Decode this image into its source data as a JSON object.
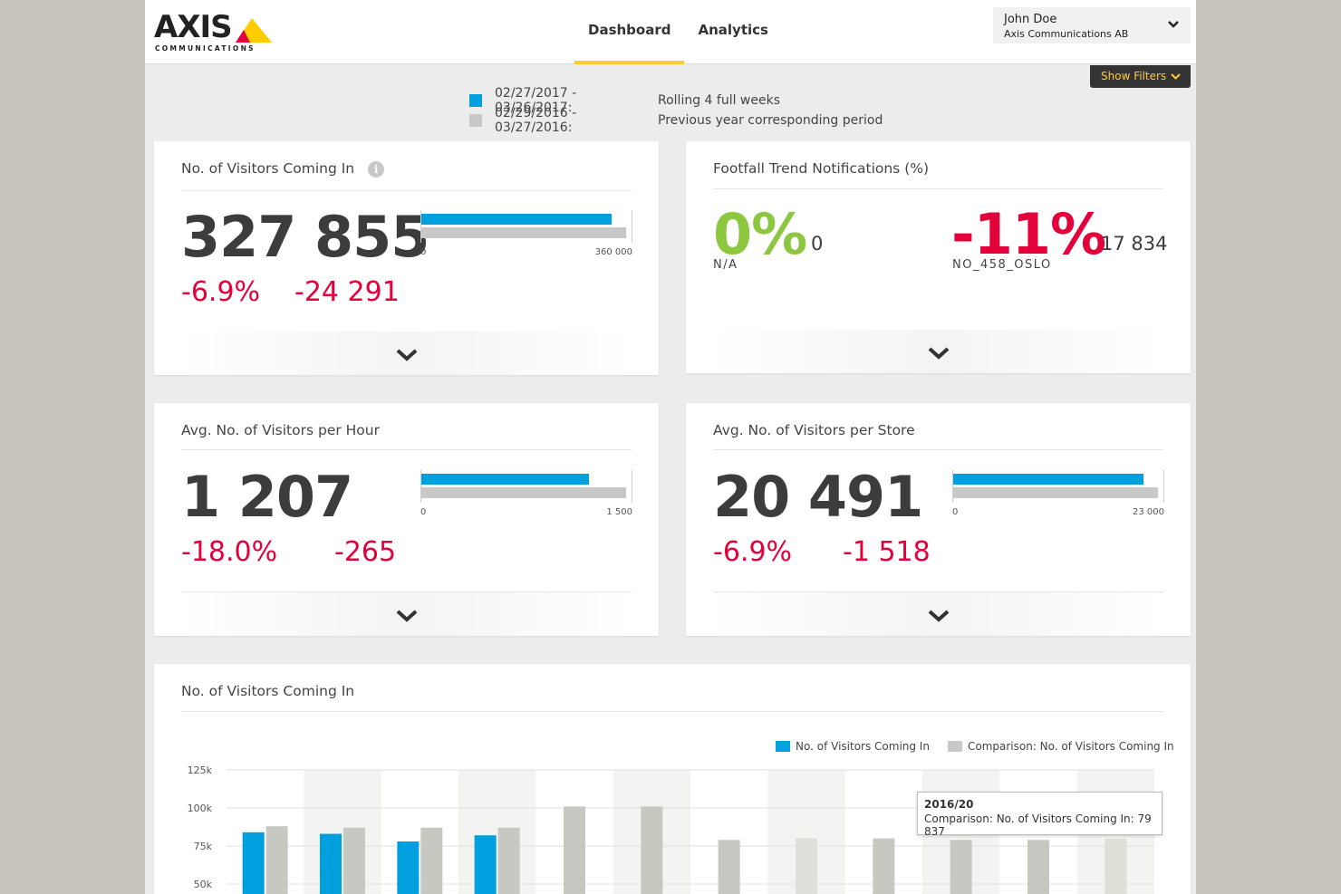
{
  "brand": {
    "name": "AXIS",
    "sub": "COMMUNICATIONS"
  },
  "nav": {
    "tabs": [
      {
        "label": "Dashboard",
        "active": true
      },
      {
        "label": "Analytics",
        "active": false
      }
    ]
  },
  "user": {
    "name": "John Doe",
    "org": "Axis Communications AB"
  },
  "filters": {
    "label": "Show Filters"
  },
  "periods": [
    {
      "range": "02/27/2017 - 03/26/2017:",
      "desc": "Rolling 4 full weeks",
      "color": "#009fdd"
    },
    {
      "range": "02/29/2016 - 03/27/2016:",
      "desc": "Previous year corresponding period",
      "color": "#c8c8c8"
    }
  ],
  "colors": {
    "accent": "#ffcc33",
    "current": "#009fdd",
    "previous": "#c8c8c8",
    "negative": "#e4003b",
    "positive": "#8dc63f"
  },
  "cards": {
    "visitors_in": {
      "title": "No. of Visitors Coming In",
      "value": "327 855",
      "delta_pct": "-6.9%",
      "delta_abs": "-24 291",
      "bar_min": "0",
      "bar_max": "360 000",
      "current_fraction": 0.93,
      "previous_fraction": 1.0
    },
    "trend": {
      "title": "Footfall Trend Notifications (%)",
      "left": {
        "pct": "0%",
        "count": "0",
        "label": "N/A"
      },
      "right": {
        "pct": "-11%",
        "count": "17 834",
        "label": "NO_458_OSLO"
      }
    },
    "per_hour": {
      "title": "Avg. No. of Visitors per Hour",
      "value": "1 207",
      "delta_pct": "-18.0%",
      "delta_abs": "-265",
      "bar_min": "0",
      "bar_max": "1 500",
      "current_fraction": 0.82,
      "previous_fraction": 1.0
    },
    "per_store": {
      "title": "Avg. No. of Visitors per Store",
      "value": "20 491",
      "delta_pct": "-6.9%",
      "delta_abs": "-1 518",
      "bar_min": "0",
      "bar_max": "23 000",
      "current_fraction": 0.93,
      "previous_fraction": 1.0
    }
  },
  "chart_section": {
    "title": "No. of Visitors Coming In"
  },
  "tooltip": {
    "title": "2016/20",
    "text": "Comparison: No. of Visitors Coming In: 79 837"
  },
  "chart_data": {
    "type": "bar",
    "series": [
      {
        "name": "No. of Visitors Coming In",
        "values": [
          84000,
          83000,
          78000,
          82000,
          null,
          null,
          null,
          null,
          null,
          null,
          null,
          null
        ],
        "color": "#009fdd"
      },
      {
        "name": "Comparison: No. of Visitors Coming In",
        "values": [
          88000,
          87000,
          87000,
          87000,
          101000,
          101000,
          79000,
          80000,
          80000,
          79000,
          79000,
          79837
        ],
        "color": "#c8c8c8"
      }
    ],
    "yticks": [
      "125k",
      "100k",
      "75k",
      "50k"
    ],
    "ylim": [
      40000,
      125000
    ],
    "grid": true,
    "legend_position": "top-right"
  }
}
